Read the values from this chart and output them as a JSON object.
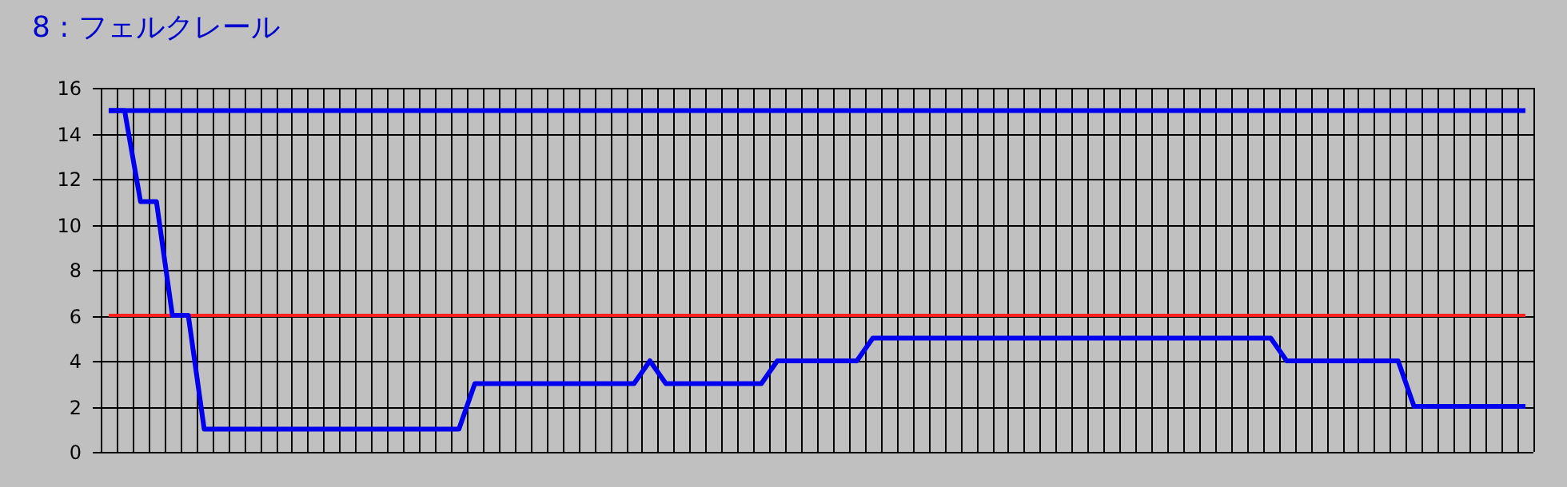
{
  "chart_data": {
    "type": "line",
    "title": "8 : フェルクレール",
    "categories": [
      null,
      null,
      null,
      null,
      null,
      null,
      null,
      null,
      null,
      null,
      null,
      null,
      null,
      null,
      null,
      null,
      null,
      null,
      null,
      null,
      null,
      null,
      null,
      null,
      null,
      null,
      null,
      null,
      null,
      null,
      null,
      null,
      null,
      null,
      null,
      null,
      null,
      null,
      null,
      null,
      null,
      null,
      null,
      null,
      null,
      null,
      null,
      null,
      null,
      null,
      null,
      null,
      null,
      null,
      null,
      null,
      null,
      null,
      null,
      null,
      null,
      null,
      null,
      null,
      null,
      null,
      null,
      null,
      null,
      null,
      null,
      null,
      null,
      null,
      null,
      null,
      null,
      null,
      null,
      null,
      null,
      null,
      null,
      null,
      null,
      null,
      null,
      null,
      null,
      null
    ],
    "series": [
      {
        "color": "#0000ee",
        "values": [
          15,
          15,
          15,
          15,
          15,
          15,
          15,
          15,
          15,
          15,
          15,
          15,
          15,
          15,
          15,
          15,
          15,
          15,
          15,
          15,
          15,
          15,
          15,
          15,
          15,
          15,
          15,
          15,
          15,
          15,
          15,
          15,
          15,
          15,
          15,
          15,
          15,
          15,
          15,
          15,
          15,
          15,
          15,
          15,
          15,
          15,
          15,
          15,
          15,
          15,
          15,
          15,
          15,
          15,
          15,
          15,
          15,
          15,
          15,
          15,
          15,
          15,
          15,
          15,
          15,
          15,
          15,
          15,
          15,
          15,
          15,
          15,
          15,
          15,
          15,
          15,
          15,
          15,
          15,
          15,
          15,
          15,
          15,
          15,
          15,
          15,
          15,
          15,
          15,
          15
        ]
      },
      {
        "color": "#ff2020",
        "values": [
          6,
          6,
          6,
          6,
          6,
          6,
          6,
          6,
          6,
          6,
          6,
          6,
          6,
          6,
          6,
          6,
          6,
          6,
          6,
          6,
          6,
          6,
          6,
          6,
          6,
          6,
          6,
          6,
          6,
          6,
          6,
          6,
          6,
          6,
          6,
          6,
          6,
          6,
          6,
          6,
          6,
          6,
          6,
          6,
          6,
          6,
          6,
          6,
          6,
          6,
          6,
          6,
          6,
          6,
          6,
          6,
          6,
          6,
          6,
          6,
          6,
          6,
          6,
          6,
          6,
          6,
          6,
          6,
          6,
          6,
          6,
          6,
          6,
          6,
          6,
          6,
          6,
          6,
          6,
          6,
          6,
          6,
          6,
          6,
          6,
          6,
          6,
          6,
          6,
          6
        ]
      },
      {
        "color": "#0000ee",
        "values": [
          15,
          15,
          11,
          11,
          6,
          6,
          1,
          1,
          1,
          1,
          1,
          1,
          1,
          1,
          1,
          1,
          1,
          1,
          1,
          1,
          1,
          1,
          1,
          3,
          3,
          3,
          3,
          3,
          3,
          3,
          3,
          3,
          3,
          3,
          4,
          3,
          3,
          3,
          3,
          3,
          3,
          3,
          4,
          4,
          4,
          4,
          4,
          4,
          5,
          5,
          5,
          5,
          5,
          5,
          5,
          5,
          5,
          5,
          5,
          5,
          5,
          5,
          5,
          5,
          5,
          5,
          5,
          5,
          5,
          5,
          5,
          5,
          5,
          5,
          4,
          4,
          4,
          4,
          4,
          4,
          4,
          4,
          2,
          2,
          2,
          2,
          2,
          2,
          2,
          2
        ]
      }
    ],
    "ylim": [
      0,
      16
    ],
    "yticks": [
      0,
      2,
      4,
      6,
      8,
      10,
      12,
      14,
      16
    ],
    "grid": true,
    "tick_labels": "y"
  }
}
